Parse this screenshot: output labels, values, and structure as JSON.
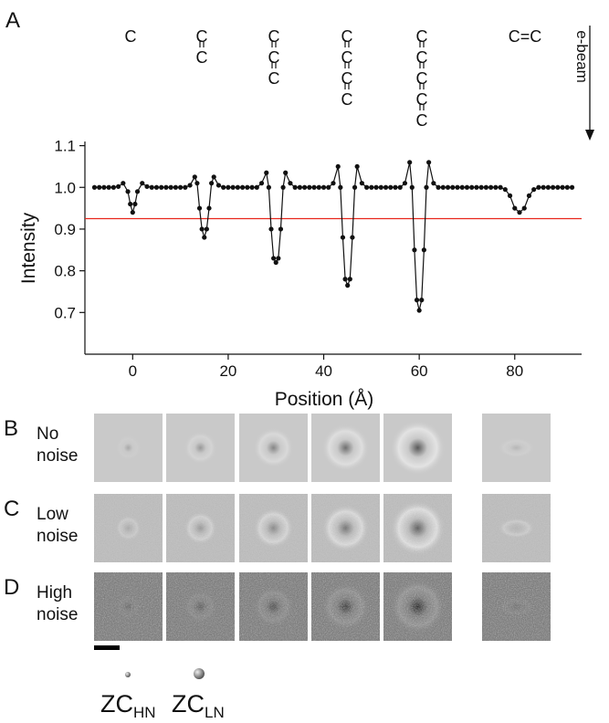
{
  "chart_data": {
    "type": "line",
    "panel_label": "A",
    "xlabel": "Position (Å)",
    "ylabel": "Intensity",
    "beam_label": "e-beam",
    "structures": [
      [
        "C"
      ],
      [
        "C",
        "C"
      ],
      [
        "C",
        "C",
        "C"
      ],
      [
        "C",
        "C",
        "C",
        "C"
      ],
      [
        "C",
        "C",
        "C",
        "C",
        "C"
      ],
      [
        "C=C"
      ]
    ],
    "color": "#111111",
    "reference_line": {
      "value": 0.925,
      "color": "#e8261c"
    },
    "xlim": [
      -10,
      94
    ],
    "ylim": [
      0.6,
      1.11
    ],
    "xticks": [
      0,
      20,
      40,
      60,
      80
    ],
    "yticks": [
      0.7,
      0.8,
      0.9,
      {
        "value": 1,
        "label": "1.0"
      },
      1.1
    ],
    "x": [
      -8,
      -7,
      -6,
      -5,
      -4,
      -3,
      -2,
      -1,
      -0.5,
      0,
      0.5,
      1,
      2,
      3,
      4,
      5,
      6,
      7,
      8,
      9,
      10,
      11,
      12,
      13,
      13.5,
      14,
      14.5,
      15,
      15.5,
      16,
      16.5,
      17,
      18,
      19,
      20,
      21,
      22,
      23,
      24,
      25,
      26,
      27,
      28,
      28.5,
      29,
      29.5,
      30,
      30.5,
      31,
      31.5,
      32,
      33,
      34,
      35,
      36,
      37,
      38,
      39,
      40,
      41,
      42,
      43,
      43.5,
      44,
      44.5,
      45,
      45.5,
      46,
      46.5,
      47,
      48,
      49,
      50,
      51,
      52,
      53,
      54,
      55,
      56,
      57,
      58,
      58.5,
      59,
      59.5,
      60,
      60.5,
      61,
      61.5,
      62,
      63,
      64,
      65,
      66,
      67,
      68,
      69,
      70,
      71,
      72,
      73,
      74,
      75,
      76,
      77,
      78,
      79,
      80,
      81,
      82,
      83,
      84,
      85,
      86,
      87,
      88,
      89,
      90,
      91,
      92
    ],
    "values": [
      1,
      1,
      1,
      1,
      1,
      1.002,
      1.01,
      0.99,
      0.96,
      0.94,
      0.96,
      0.99,
      1.01,
      1.002,
      1,
      1,
      1,
      1,
      1,
      1,
      1,
      1,
      1.005,
      1.025,
      1.01,
      0.95,
      0.9,
      0.88,
      0.9,
      0.95,
      1.01,
      1.025,
      1.005,
      1,
      1,
      1,
      1,
      1,
      1,
      1,
      1,
      1.01,
      1.035,
      1,
      0.9,
      0.83,
      0.82,
      0.83,
      0.9,
      1,
      1.035,
      1.01,
      1,
      1,
      1,
      1,
      1,
      1,
      1,
      1,
      1.01,
      1.05,
      1,
      0.88,
      0.78,
      0.765,
      0.78,
      0.88,
      1,
      1.05,
      1.01,
      1,
      1,
      1,
      1,
      1,
      1,
      1,
      1,
      1.01,
      1.06,
      1,
      0.85,
      0.73,
      0.705,
      0.73,
      0.85,
      1,
      1.06,
      1.01,
      1,
      1,
      1,
      1,
      1,
      1,
      1,
      1,
      1,
      1,
      1,
      1,
      1,
      1,
      0.995,
      0.98,
      0.95,
      0.94,
      0.95,
      0.98,
      0.995,
      1,
      1,
      1,
      1,
      1,
      1,
      1,
      1
    ]
  },
  "panels": {
    "rows": [
      {
        "label": "B",
        "text": [
          "No",
          "noise"
        ]
      },
      {
        "label": "C",
        "text": [
          "Low",
          "noise"
        ]
      },
      {
        "label": "D",
        "text": [
          "High",
          "noise"
        ]
      }
    ],
    "legend": [
      {
        "main": "ZC",
        "sub": "HN"
      },
      {
        "main": "ZC",
        "sub": "LN"
      }
    ]
  }
}
